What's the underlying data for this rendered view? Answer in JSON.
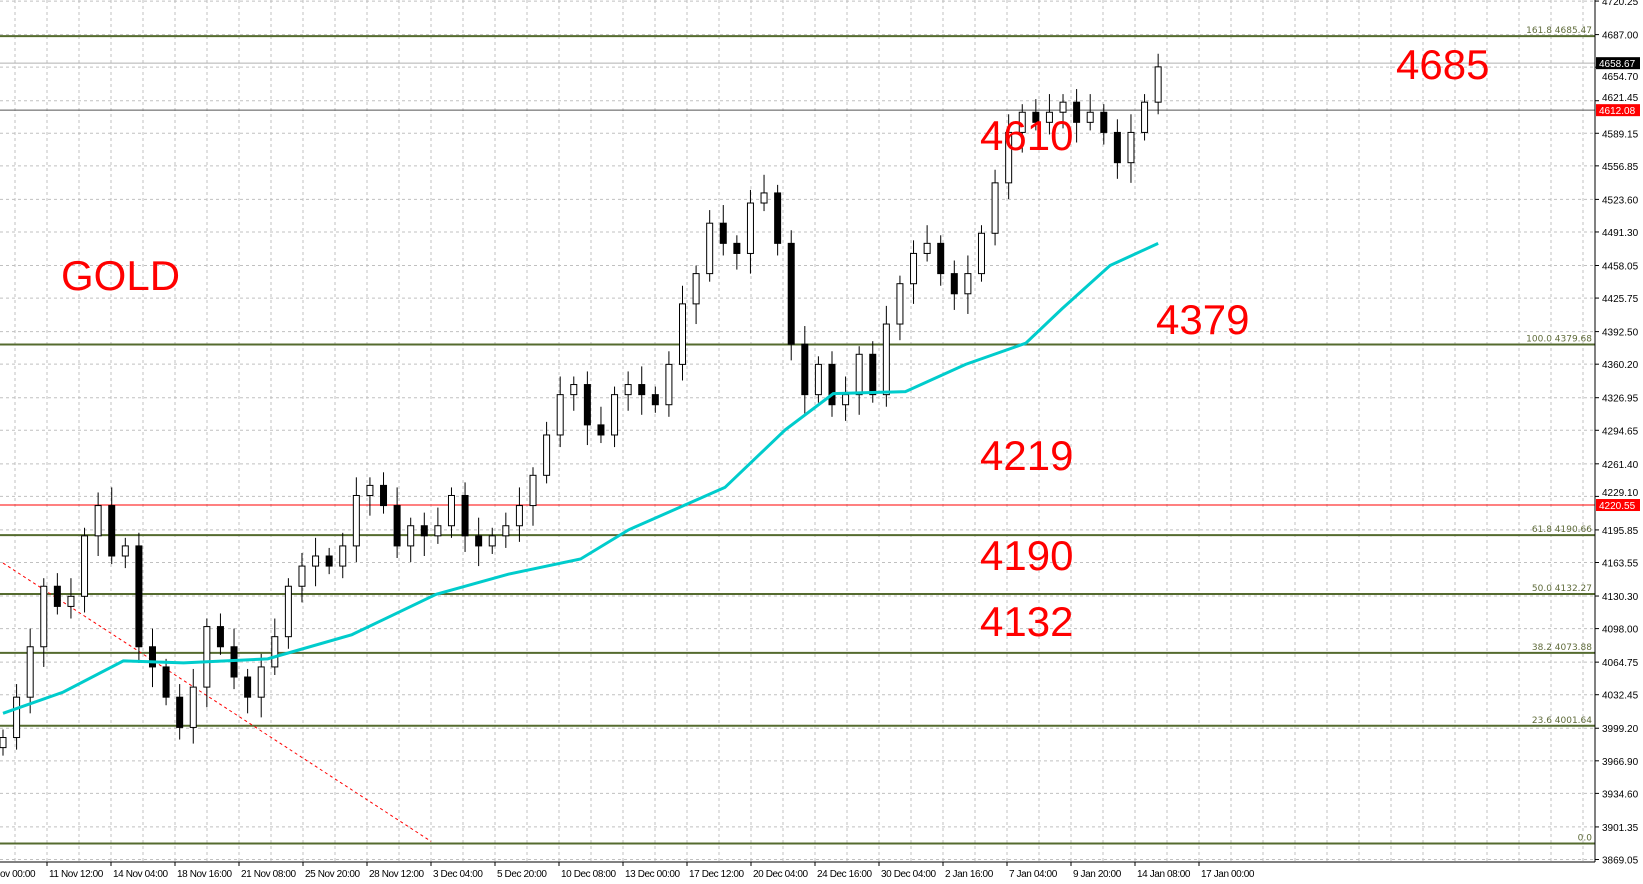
{
  "chart_data": {
    "type": "candlestick",
    "symbol_label": "GOLD",
    "y_range": [
      3869.05,
      4720.25
    ],
    "y_ticks": [
      "4720.25",
      "4687.00",
      "4654.70",
      "4621.45",
      "4589.15",
      "4556.85",
      "4523.60",
      "4491.30",
      "4458.05",
      "4425.75",
      "4392.50",
      "4360.20",
      "4326.95",
      "4294.65",
      "4261.40",
      "4229.10",
      "4195.85",
      "4163.55",
      "4130.30",
      "4098.00",
      "4064.75",
      "4032.45",
      "3999.20",
      "3966.90",
      "3934.60",
      "3901.35",
      "3869.05"
    ],
    "x_ticks": [
      "ov 00:00",
      "11 Nov 12:00",
      "14 Nov 04:00",
      "18 Nov 16:00",
      "21 Nov 08:00",
      "25 Nov 20:00",
      "28 Nov 12:00",
      "3 Dec 04:00",
      "5 Dec 20:00",
      "10 Dec 08:00",
      "13 Dec 00:00",
      "17 Dec 12:00",
      "20 Dec 04:00",
      "24 Dec 16:00",
      "30 Dec 04:00",
      "2 Jan 16:00",
      "7 Jan 04:00",
      "9 Jan 20:00",
      "14 Jan 08:00",
      "17 Jan 00:00"
    ],
    "grid": true,
    "closes": [
      3990,
      4030,
      4080,
      4140,
      4120,
      4130,
      4190,
      4220,
      4170,
      4180,
      4080,
      4060,
      4030,
      4000,
      4040,
      4100,
      4080,
      4050,
      4030,
      4060,
      4090,
      4140,
      4160,
      4170,
      4160,
      4180,
      4230,
      4240,
      4220,
      4180,
      4200,
      4190,
      4200,
      4230,
      4190,
      4180,
      4190,
      4200,
      4220,
      4250,
      4290,
      4330,
      4340,
      4300,
      4290,
      4330,
      4340,
      4330,
      4320,
      4360,
      4420,
      4450,
      4500,
      4480,
      4470,
      4520,
      4530,
      4480,
      4380,
      4330,
      4360,
      4320,
      4330,
      4370,
      4330,
      4400,
      4440,
      4470,
      4480,
      4450,
      4430,
      4450,
      4490,
      4540,
      4590,
      4610,
      4600,
      4610,
      4620,
      4600,
      4610,
      4590,
      4560,
      4590,
      4620,
      4655
    ],
    "moving_average": [
      [
        0,
        4014
      ],
      [
        5,
        4035
      ],
      [
        10,
        4066
      ],
      [
        15,
        4064
      ],
      [
        22,
        4068
      ],
      [
        29,
        4092
      ],
      [
        36,
        4132
      ],
      [
        42,
        4152
      ],
      [
        48,
        4167
      ],
      [
        52,
        4196
      ],
      [
        60,
        4238
      ],
      [
        65,
        4295
      ],
      [
        69,
        4331
      ],
      [
        75,
        4333
      ],
      [
        80,
        4360
      ],
      [
        85,
        4381
      ],
      [
        88,
        4415
      ],
      [
        92,
        4458
      ],
      [
        96,
        4480
      ]
    ],
    "moving_average_color": "#00cccc",
    "trendline": {
      "start": [
        0,
        4163
      ],
      "end": [
        31.5,
        3887
      ],
      "color": "#ff0000"
    },
    "fibonacci": [
      {
        "level": "161.8",
        "value": "4685.47",
        "price": 4685.47
      },
      {
        "level": "100.0",
        "value": "4379.68",
        "price": 4379.68
      },
      {
        "level": "61.8",
        "value": "4190.66",
        "price": 4190.66
      },
      {
        "level": "50.0",
        "value": "4132.27",
        "price": 4132.27
      },
      {
        "level": "38.2",
        "value": "4073.88",
        "price": 4073.88
      },
      {
        "level": "23.6",
        "value": "4001.64",
        "price": 4001.64
      },
      {
        "level": "0.0",
        "value": "",
        "price": 3884.87
      }
    ],
    "fib_color": "#556b2f",
    "price_lines": [
      {
        "label": "4658.67",
        "price": 4658.67,
        "color": "#000000",
        "line": "#b0b0b0"
      },
      {
        "label": "4612.08",
        "price": 4612.08,
        "color": "#ff0000",
        "line": "#555555"
      },
      {
        "label": "4220.55",
        "price": 4220.55,
        "color": "#ff0000",
        "line": "#ff0000"
      }
    ],
    "annotations": [
      "GOLD",
      "4685",
      "4610",
      "4379",
      "4219",
      "4190",
      "4132"
    ]
  }
}
